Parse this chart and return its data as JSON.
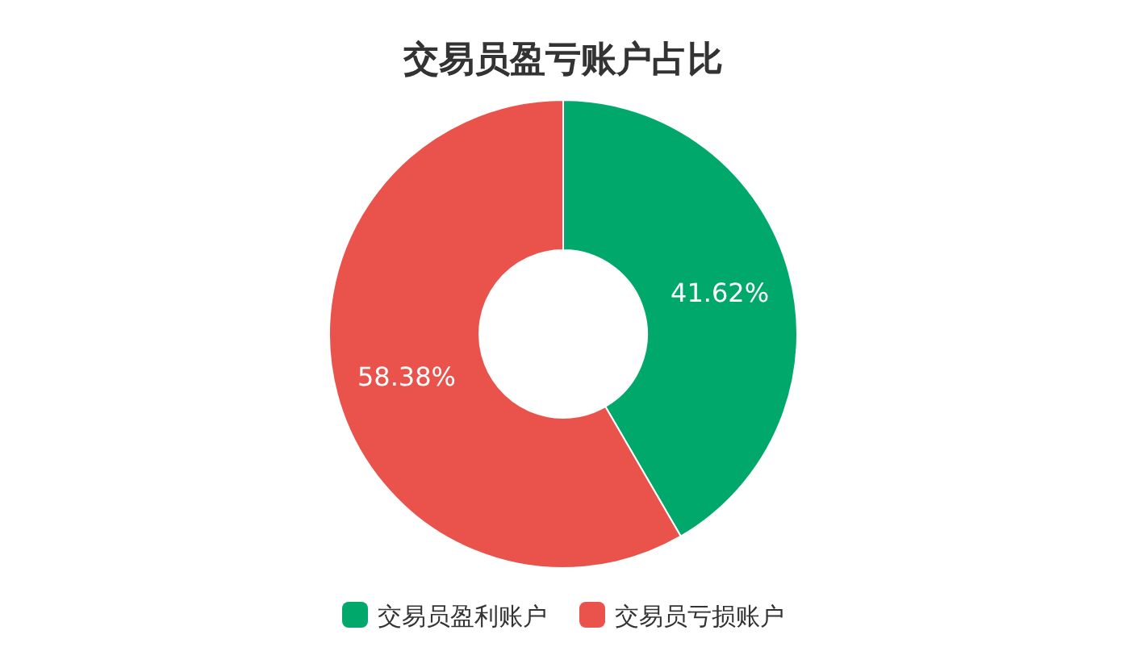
{
  "chart_data": {
    "type": "donut",
    "title": "交易员盈亏账户占比",
    "categories": [
      "交易员盈利账户",
      "交易员亏损账户"
    ],
    "values": [
      41.62,
      58.38
    ],
    "colors": [
      "#00a96b",
      "#ea534b"
    ],
    "value_labels": [
      "41.62%",
      "58.38%"
    ],
    "legend": "bottom"
  }
}
